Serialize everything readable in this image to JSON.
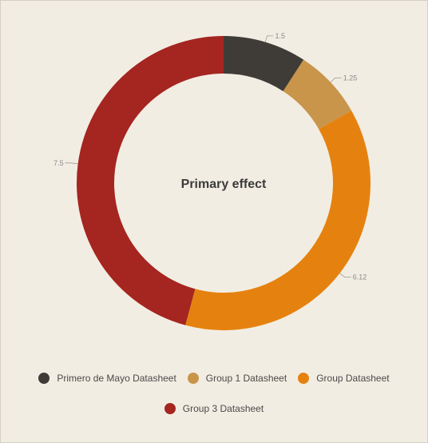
{
  "chart_data": {
    "type": "pie",
    "title": "Primary effect",
    "categories": [
      "Primero de Mayo Datasheet",
      "Group 1 Datasheet",
      "Group Datasheet",
      "Group 3 Datasheet"
    ],
    "values": [
      1.5,
      1.25,
      6.12,
      7.5
    ],
    "value_labels": [
      "1.5",
      "1.25",
      "6.12",
      "7.5"
    ],
    "colors": [
      "#3f3b36",
      "#c8954a",
      "#e5820f",
      "#a52521"
    ],
    "donut": true,
    "legend_placement": "bottom"
  }
}
